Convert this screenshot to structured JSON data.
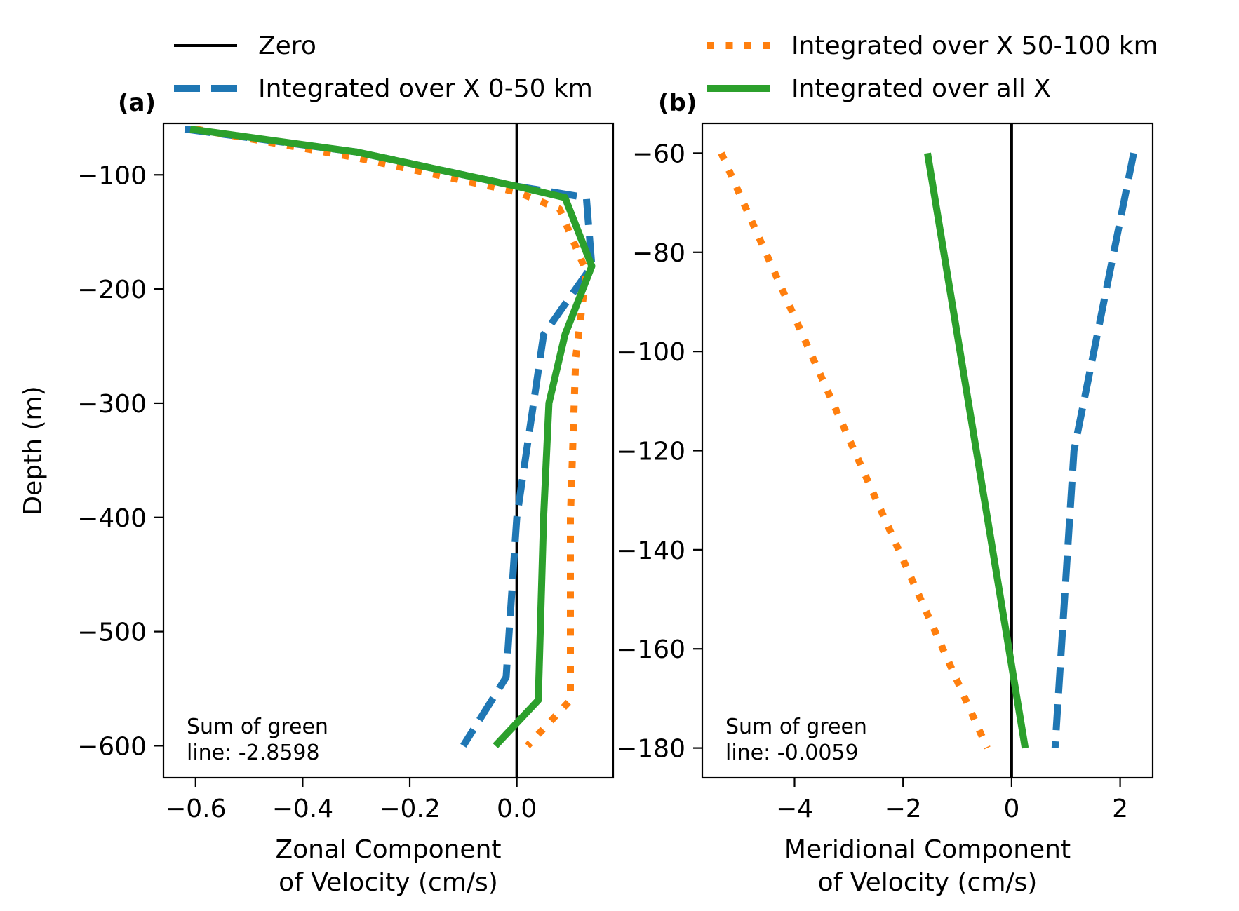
{
  "legend": {
    "placement": "top",
    "entries": [
      {
        "label": "Zero",
        "color": "#000000",
        "style": "solid"
      },
      {
        "label": "Integrated over X 0-50 km",
        "color": "#1f77b4",
        "style": "dashed"
      },
      {
        "label": "Integrated over X 50-100 km",
        "color": "#ff7f0e",
        "style": "dotted"
      },
      {
        "label": "Integrated over all X",
        "color": "#2ca02c",
        "style": "solid"
      }
    ]
  },
  "chart_data": [
    {
      "type": "line",
      "panel_label": "(a)",
      "xlabel": [
        "Zonal Component",
        "of Velocity (cm/s)"
      ],
      "ylabel": "Depth (m)",
      "xlim": [
        -0.66,
        0.18
      ],
      "ylim": [
        -628,
        -55
      ],
      "xticks": [
        -0.6,
        -0.4,
        -0.2,
        0.0
      ],
      "xtick_labels": [
        "−0.6",
        "−0.4",
        "−0.2",
        "0.0"
      ],
      "yticks": [
        -100,
        -200,
        -300,
        -400,
        -500,
        -600
      ],
      "ytick_labels": [
        "−100",
        "−200",
        "−300",
        "−400",
        "−500",
        "−600"
      ],
      "annotation": [
        "Sum of green",
        "line: -2.8598"
      ],
      "zero_line": {
        "axis": "x",
        "value": 0
      },
      "series": [
        {
          "name": "Integrated over X 0-50 km",
          "color": "#1f77b4",
          "style": "dashed",
          "points": [
            [
              -0.62,
              -60
            ],
            [
              -0.3,
              -80
            ],
            [
              0.0,
              -110
            ],
            [
              0.13,
              -120
            ],
            [
              0.14,
              -180
            ],
            [
              0.05,
              -240
            ],
            [
              0.0,
              -400
            ],
            [
              -0.02,
              -540
            ],
            [
              -0.1,
              -600
            ]
          ]
        },
        {
          "name": "Integrated over X 50-100 km",
          "color": "#ff7f0e",
          "style": "dotted",
          "points": [
            [
              -0.6,
              -60
            ],
            [
              -0.3,
              -85
            ],
            [
              0.0,
              -115
            ],
            [
              0.08,
              -130
            ],
            [
              0.13,
              -185
            ],
            [
              0.11,
              -260
            ],
            [
              0.1,
              -400
            ],
            [
              0.1,
              -560
            ],
            [
              0.02,
              -600
            ]
          ]
        },
        {
          "name": "Integrated over all X",
          "color": "#2ca02c",
          "style": "solid",
          "points": [
            [
              -0.61,
              -60
            ],
            [
              -0.3,
              -80
            ],
            [
              0.0,
              -110
            ],
            [
              0.09,
              -120
            ],
            [
              0.14,
              -180
            ],
            [
              0.09,
              -240
            ],
            [
              0.06,
              -300
            ],
            [
              0.05,
              -400
            ],
            [
              0.04,
              -560
            ],
            [
              -0.04,
              -600
            ]
          ]
        }
      ]
    },
    {
      "type": "line",
      "panel_label": "(b)",
      "xlabel": [
        "Meridional Component",
        "of Velocity (cm/s)"
      ],
      "ylabel": "",
      "xlim": [
        -5.7,
        2.6
      ],
      "ylim": [
        -186,
        -54
      ],
      "xticks": [
        -4,
        -2,
        0,
        2
      ],
      "xtick_labels": [
        "−4",
        "−2",
        "0",
        "2"
      ],
      "yticks": [
        -60,
        -80,
        -100,
        -120,
        -140,
        -160,
        -180
      ],
      "ytick_labels": [
        "−60",
        "−80",
        "−100",
        "−120",
        "−140",
        "−160",
        "−180"
      ],
      "annotation": [
        "Sum of green",
        "line: -0.0059"
      ],
      "zero_line": {
        "axis": "x",
        "value": 0
      },
      "series": [
        {
          "name": "Integrated over X 0-50 km",
          "color": "#1f77b4",
          "style": "dashed",
          "points": [
            [
              2.25,
              -60
            ],
            [
              1.15,
              -120
            ],
            [
              0.8,
              -180
            ]
          ]
        },
        {
          "name": "Integrated over X 50-100 km",
          "color": "#ff7f0e",
          "style": "dotted",
          "points": [
            [
              -5.35,
              -60
            ],
            [
              -0.45,
              -180
            ]
          ]
        },
        {
          "name": "Integrated over all X",
          "color": "#2ca02c",
          "style": "solid",
          "points": [
            [
              -1.55,
              -60
            ],
            [
              0.25,
              -180
            ]
          ]
        }
      ]
    }
  ]
}
